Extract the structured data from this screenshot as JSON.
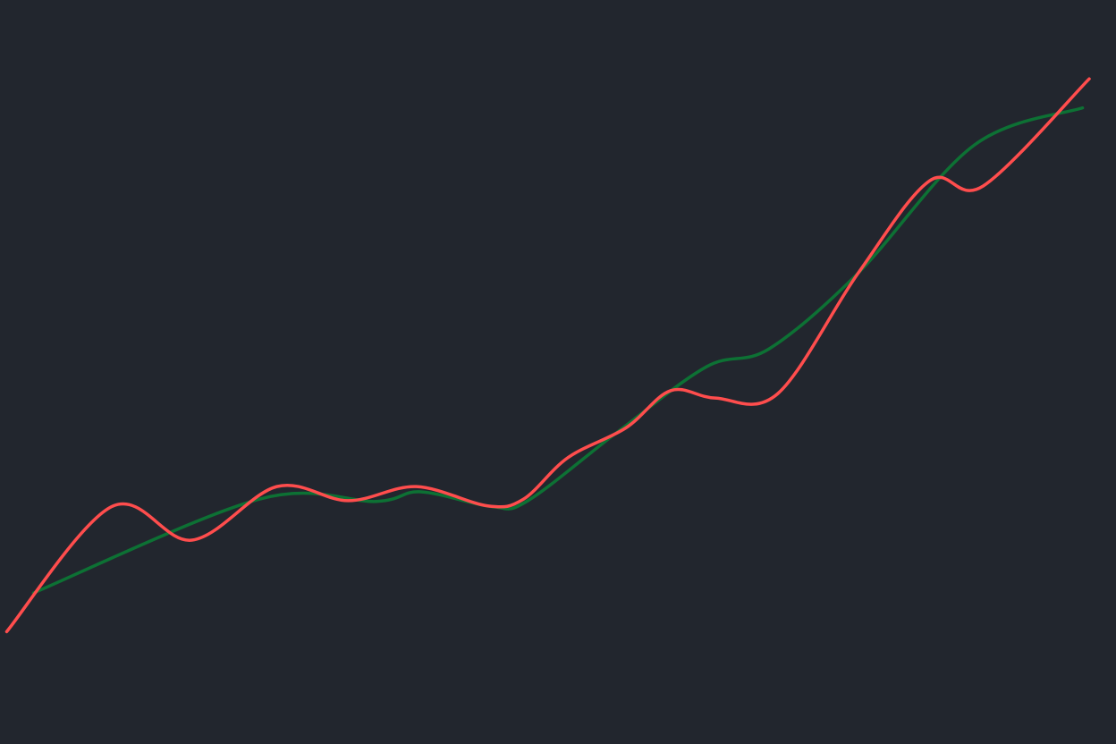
{
  "chart_data": {
    "type": "line",
    "title": "",
    "xlabel": "",
    "ylabel": "",
    "xlim": [
      0,
      100
    ],
    "ylim": [
      0,
      100
    ],
    "grid": false,
    "axes_visible": false,
    "legend": "none",
    "background": "#22262e",
    "series": [
      {
        "color": "#ff4d4d",
        "x": [
          0.6,
          10,
          17.2,
          24.8,
          31.2,
          37.3,
          43.7,
          46.9,
          50.9,
          56.1,
          60.1,
          64.1,
          69.7,
          76.9,
          83.3,
          88.1,
          97.6
        ],
        "y": [
          15.1,
          31.9,
          27.4,
          34.6,
          32.7,
          34.6,
          32.0,
          32.9,
          38.5,
          42.5,
          47.5,
          46.5,
          47.1,
          63.3,
          75.7,
          75.0,
          89.4
        ]
      },
      {
        "color": "#0b7a35",
        "x": [
          3.0,
          23.2,
          33.7,
          37.7,
          44.1,
          47.3,
          55.3,
          63.3,
          68.9,
          76.9,
          87.3,
          97.0
        ],
        "y": [
          20.3,
          32.9,
          32.6,
          33.9,
          31.9,
          32.7,
          41.9,
          50.7,
          53.1,
          63.3,
          80.5,
          85.5
        ]
      }
    ]
  }
}
